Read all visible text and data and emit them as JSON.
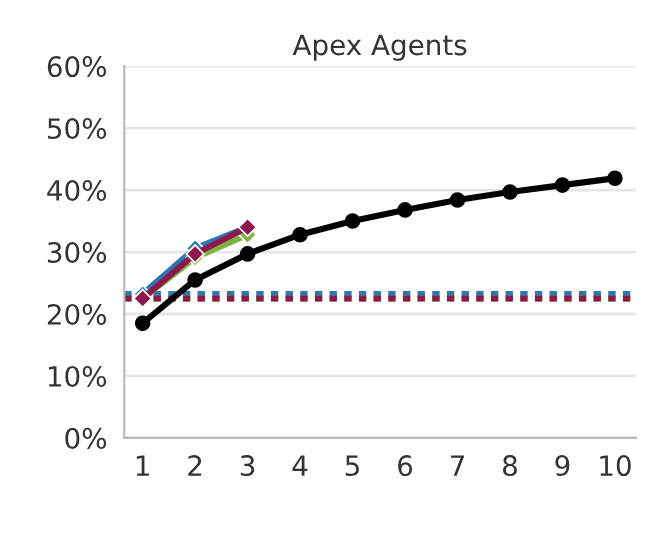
{
  "chart_data": {
    "type": "line",
    "title": "Apex Agents",
    "x": [
      1,
      2,
      3,
      4,
      5,
      6,
      7,
      8,
      9,
      10
    ],
    "series": [
      {
        "color": "#000000",
        "marker": "circle",
        "values": [
          18.5,
          25.5,
          29.7,
          32.8,
          35.0,
          36.8,
          38.4,
          39.7,
          40.8,
          41.9
        ]
      },
      {
        "color": "#2b78b5",
        "marker": "diamond",
        "x": [
          1,
          2,
          3
        ],
        "values": [
          23.2,
          30.6,
          34.0
        ]
      },
      {
        "color": "#7cb342",
        "marker": "diamond",
        "x": [
          1,
          2,
          3
        ],
        "values": [
          22.5,
          29.1,
          32.8
        ]
      },
      {
        "color": "#8b1a4b",
        "marker": "diamond",
        "x": [
          1,
          2,
          3
        ],
        "values": [
          22.5,
          29.7,
          34.0
        ]
      }
    ],
    "ref_lines": [
      {
        "axis": "y",
        "value": 23.2,
        "color": "#2b78b5",
        "line_style": "dotted"
      },
      {
        "axis": "y",
        "value": 22.5,
        "color": "#7cb342",
        "line_style": "dotted"
      },
      {
        "axis": "y",
        "value": 22.5,
        "color": "#8b1a4b",
        "line_style": "dotted"
      }
    ],
    "xlim": [
      0.65,
      10.4
    ],
    "xticks": [
      1,
      2,
      3,
      4,
      5,
      6,
      7,
      8,
      9,
      10
    ],
    "ylim": [
      0,
      60
    ],
    "yticks": [
      {
        "value": 0,
        "label": "0%"
      },
      {
        "value": 10,
        "label": "10%"
      },
      {
        "value": 20,
        "label": "20%"
      },
      {
        "value": 30,
        "label": "30%"
      },
      {
        "value": 40,
        "label": "40%"
      },
      {
        "value": 50,
        "label": "50%"
      },
      {
        "value": 60,
        "label": "60%"
      }
    ],
    "grid": "y",
    "legend": false,
    "line_style": "solid"
  }
}
